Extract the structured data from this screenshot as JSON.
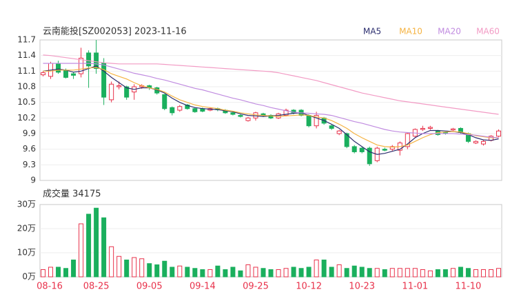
{
  "chart_data": [
    {
      "type": "candlestick",
      "title": "云南能投[SZ002053] 2023-11-16",
      "categories": [
        "08-16",
        null,
        null,
        null,
        null,
        null,
        null,
        "08-25",
        null,
        null,
        null,
        null,
        null,
        null,
        "09-05",
        null,
        null,
        null,
        null,
        null,
        null,
        "09-14",
        null,
        null,
        null,
        null,
        null,
        null,
        "09-25",
        null,
        null,
        null,
        null,
        null,
        null,
        "10-12",
        null,
        null,
        null,
        null,
        null,
        null,
        "10-23",
        null,
        null,
        null,
        null,
        null,
        null,
        "11-01",
        null,
        null,
        null,
        null,
        null,
        null,
        "11-10",
        null,
        null,
        null,
        null
      ],
      "open": [
        11.03,
        11.0,
        11.25,
        11.12,
        11.05,
        11.05,
        11.45,
        11.45,
        11.25,
        10.55,
        10.8,
        10.8,
        10.7,
        10.8,
        10.82,
        10.78,
        10.65,
        10.4,
        10.35,
        10.45,
        10.38,
        10.38,
        10.35,
        10.38,
        10.35,
        10.3,
        10.25,
        10.15,
        10.2,
        10.28,
        10.25,
        10.2,
        10.25,
        10.35,
        10.35,
        10.25,
        10.05,
        10.2,
        10.05,
        9.9,
        9.9,
        9.65,
        9.62,
        9.62,
        9.38,
        9.6,
        9.6,
        9.58,
        9.65,
        9.85,
        9.98,
        10.0,
        9.95,
        9.92,
        9.97,
        10.0,
        9.9,
        9.72,
        9.7,
        9.77,
        9.85
      ],
      "high": [
        11.1,
        11.28,
        11.3,
        11.15,
        11.08,
        11.55,
        11.5,
        11.7,
        11.35,
        10.9,
        10.9,
        10.82,
        10.85,
        10.85,
        10.84,
        10.8,
        10.66,
        10.42,
        10.45,
        10.47,
        10.4,
        10.4,
        10.4,
        10.4,
        10.37,
        10.32,
        10.27,
        10.22,
        10.32,
        10.3,
        10.27,
        10.3,
        10.38,
        10.37,
        10.37,
        10.27,
        10.32,
        10.22,
        10.07,
        9.97,
        9.92,
        9.68,
        9.64,
        9.65,
        9.65,
        9.63,
        9.68,
        9.75,
        9.92,
        10.0,
        10.05,
        10.05,
        9.97,
        9.94,
        10.01,
        10.02,
        9.92,
        9.77,
        9.78,
        9.87,
        9.98
      ],
      "low": [
        11.0,
        10.95,
        11.05,
        10.96,
        10.95,
        10.98,
        10.78,
        11.05,
        10.45,
        10.5,
        10.75,
        10.55,
        10.55,
        10.76,
        10.74,
        10.65,
        10.35,
        10.25,
        10.32,
        10.36,
        10.3,
        10.31,
        10.33,
        10.33,
        10.28,
        10.25,
        10.21,
        10.13,
        10.15,
        10.22,
        10.18,
        10.18,
        10.23,
        10.27,
        10.23,
        10.02,
        10.0,
        10.07,
        9.97,
        9.87,
        9.62,
        9.52,
        9.52,
        9.28,
        9.35,
        9.56,
        9.56,
        9.48,
        9.6,
        9.82,
        9.95,
        9.97,
        9.86,
        9.88,
        9.95,
        9.9,
        9.72,
        9.7,
        9.67,
        9.75,
        9.83
      ],
      "close": [
        11.07,
        11.25,
        11.08,
        10.98,
        11.02,
        11.35,
        11.2,
        11.15,
        10.6,
        10.85,
        10.82,
        10.6,
        10.8,
        10.82,
        10.78,
        10.68,
        10.38,
        10.3,
        10.42,
        10.38,
        10.32,
        10.33,
        10.38,
        10.36,
        10.3,
        10.27,
        10.23,
        10.2,
        10.3,
        10.25,
        10.2,
        10.28,
        10.35,
        10.3,
        10.25,
        10.05,
        10.25,
        10.1,
        10.0,
        9.95,
        9.65,
        9.55,
        9.55,
        9.32,
        9.62,
        9.58,
        9.65,
        9.72,
        9.9,
        9.98,
        10.0,
        10.02,
        9.88,
        9.9,
        9.99,
        9.92,
        9.75,
        9.75,
        9.75,
        9.85,
        9.95
      ],
      "up_color": "#e8314a",
      "down_color": "#1aaf5d",
      "ylim": [
        9,
        11.7
      ],
      "yticks": [
        9,
        9.3,
        9.6,
        9.9,
        10.2,
        10.5,
        10.8,
        11.1,
        11.4,
        11.7
      ],
      "grid": true,
      "series": [
        {
          "name": "MA5",
          "color": "#2b2d6e",
          "values": [
            11.1,
            11.12,
            11.14,
            11.12,
            11.08,
            11.1,
            11.15,
            11.2,
            11.1,
            10.98,
            10.88,
            10.78,
            10.75,
            10.78,
            10.78,
            10.74,
            10.68,
            10.58,
            10.5,
            10.44,
            10.4,
            10.38,
            10.37,
            10.36,
            10.34,
            10.32,
            10.28,
            10.25,
            10.24,
            10.23,
            10.24,
            10.25,
            10.27,
            10.29,
            10.3,
            10.25,
            10.2,
            10.15,
            10.08,
            10.0,
            9.88,
            9.75,
            9.65,
            9.55,
            9.5,
            9.52,
            9.56,
            9.6,
            9.7,
            9.82,
            9.9,
            9.96,
            9.96,
            9.95,
            9.94,
            9.92,
            9.88,
            9.82,
            9.78,
            9.77,
            9.8
          ]
        },
        {
          "name": "MA10",
          "color": "#f5b342",
          "values": [
            11.1,
            11.1,
            11.12,
            11.12,
            11.12,
            11.14,
            11.16,
            11.17,
            11.13,
            11.05,
            11.0,
            10.95,
            10.88,
            10.82,
            10.78,
            10.75,
            10.7,
            10.62,
            10.55,
            10.5,
            10.45,
            10.42,
            10.4,
            10.38,
            10.35,
            10.33,
            10.3,
            10.28,
            10.26,
            10.25,
            10.24,
            10.23,
            10.24,
            10.25,
            10.26,
            10.25,
            10.22,
            10.2,
            10.15,
            10.08,
            10.0,
            9.9,
            9.82,
            9.75,
            9.68,
            9.65,
            9.64,
            9.65,
            9.68,
            9.75,
            9.82,
            9.88,
            9.92,
            9.93,
            9.94,
            9.93,
            9.9,
            9.86,
            9.84,
            9.82,
            9.82
          ]
        },
        {
          "name": "MA20",
          "color": "#c08be0",
          "values": [
            11.25,
            11.25,
            11.25,
            11.25,
            11.25,
            11.25,
            11.25,
            11.24,
            11.22,
            11.18,
            11.14,
            11.1,
            11.06,
            11.03,
            11.0,
            10.96,
            10.93,
            10.89,
            10.85,
            10.81,
            10.77,
            10.74,
            10.7,
            10.66,
            10.62,
            10.58,
            10.55,
            10.51,
            10.47,
            10.44,
            10.4,
            10.37,
            10.34,
            10.31,
            10.3,
            10.29,
            10.28,
            10.27,
            10.25,
            10.21,
            10.17,
            10.13,
            10.1,
            10.06,
            10.02,
            9.98,
            9.95,
            9.93,
            9.92,
            9.91,
            9.9,
            9.9,
            9.9,
            9.9,
            9.9,
            9.89,
            9.88,
            9.87,
            9.85,
            9.83,
            9.82
          ]
        },
        {
          "name": "MA60",
          "color": "#f29ac4",
          "values": [
            11.41,
            11.4,
            11.38,
            11.36,
            11.34,
            11.32,
            11.3,
            11.28,
            11.26,
            11.25,
            11.24,
            11.24,
            11.24,
            11.24,
            11.24,
            11.24,
            11.23,
            11.22,
            11.21,
            11.2,
            11.19,
            11.18,
            11.17,
            11.16,
            11.15,
            11.14,
            11.13,
            11.12,
            11.11,
            11.1,
            11.09,
            11.07,
            11.04,
            11.01,
            10.98,
            10.95,
            10.92,
            10.88,
            10.84,
            10.8,
            10.76,
            10.72,
            10.68,
            10.65,
            10.62,
            10.59,
            10.56,
            10.53,
            10.51,
            10.49,
            10.47,
            10.45,
            10.43,
            10.41,
            10.39,
            10.37,
            10.35,
            10.33,
            10.31,
            10.29,
            10.27
          ]
        }
      ]
    },
    {
      "type": "bar",
      "title": "成交量 34175",
      "values": [
        3,
        4,
        4,
        3.5,
        7,
        22,
        26,
        28.5,
        24.5,
        12.5,
        8.5,
        7,
        8,
        7.5,
        5.5,
        5,
        6.5,
        4,
        4.5,
        4,
        3.5,
        3,
        3,
        4.5,
        3,
        4,
        2.5,
        5,
        4,
        3.5,
        3,
        3,
        3.5,
        4,
        3.5,
        4,
        7,
        7,
        4,
        5,
        3.5,
        4.5,
        4,
        3.5,
        3.5,
        3,
        3.5,
        3.5,
        3.5,
        3.5,
        3,
        2.5,
        3,
        3,
        3.5,
        4,
        3.5,
        3,
        3,
        3,
        3.5
      ],
      "ylim": [
        0,
        30
      ],
      "yticks": [
        {
          "value": 0,
          "label": "0万"
        },
        {
          "value": 10,
          "label": "10万"
        },
        {
          "value": 20,
          "label": "20万"
        },
        {
          "value": 30,
          "label": "30万"
        }
      ]
    }
  ]
}
